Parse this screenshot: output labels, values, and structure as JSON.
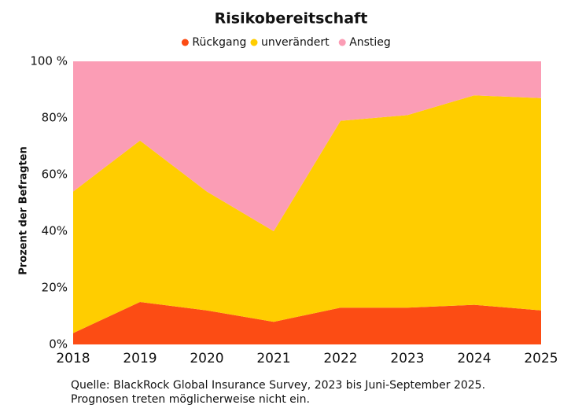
{
  "chart_data": {
    "type": "stacked_area",
    "title": "Risikobereitschaft",
    "y_label": "Prozent der Befragten",
    "categories": [
      "2018",
      "2019",
      "2020",
      "2021",
      "2022",
      "2023",
      "2024",
      "2025"
    ],
    "series": [
      {
        "name": "Rückgang",
        "color": "#fc4c14",
        "values": [
          4,
          15,
          12,
          8,
          13,
          13,
          14,
          12
        ]
      },
      {
        "name": "unverändert",
        "color": "#ffcd00",
        "values": [
          50,
          57,
          42,
          32,
          66,
          68,
          74,
          75
        ]
      },
      {
        "name": "Anstieg",
        "color": "#fb9db5",
        "values": [
          46,
          28,
          46,
          60,
          21,
          19,
          12,
          13
        ]
      }
    ],
    "ylim": [
      0,
      100
    ],
    "yticks": [
      {
        "value": 0,
        "label": "0%"
      },
      {
        "value": 20,
        "label": "20%"
      },
      {
        "value": 40,
        "label": "40%"
      },
      {
        "value": 60,
        "label": "60%"
      },
      {
        "value": 80,
        "label": "80%"
      },
      {
        "value": 100,
        "label": "100 %"
      }
    ],
    "notes": [
      "Quelle: BlackRock Global Insurance Survey, 2023 bis Juni-September 2025.",
      "Prognosen treten möglicherweise nicht ein."
    ]
  }
}
